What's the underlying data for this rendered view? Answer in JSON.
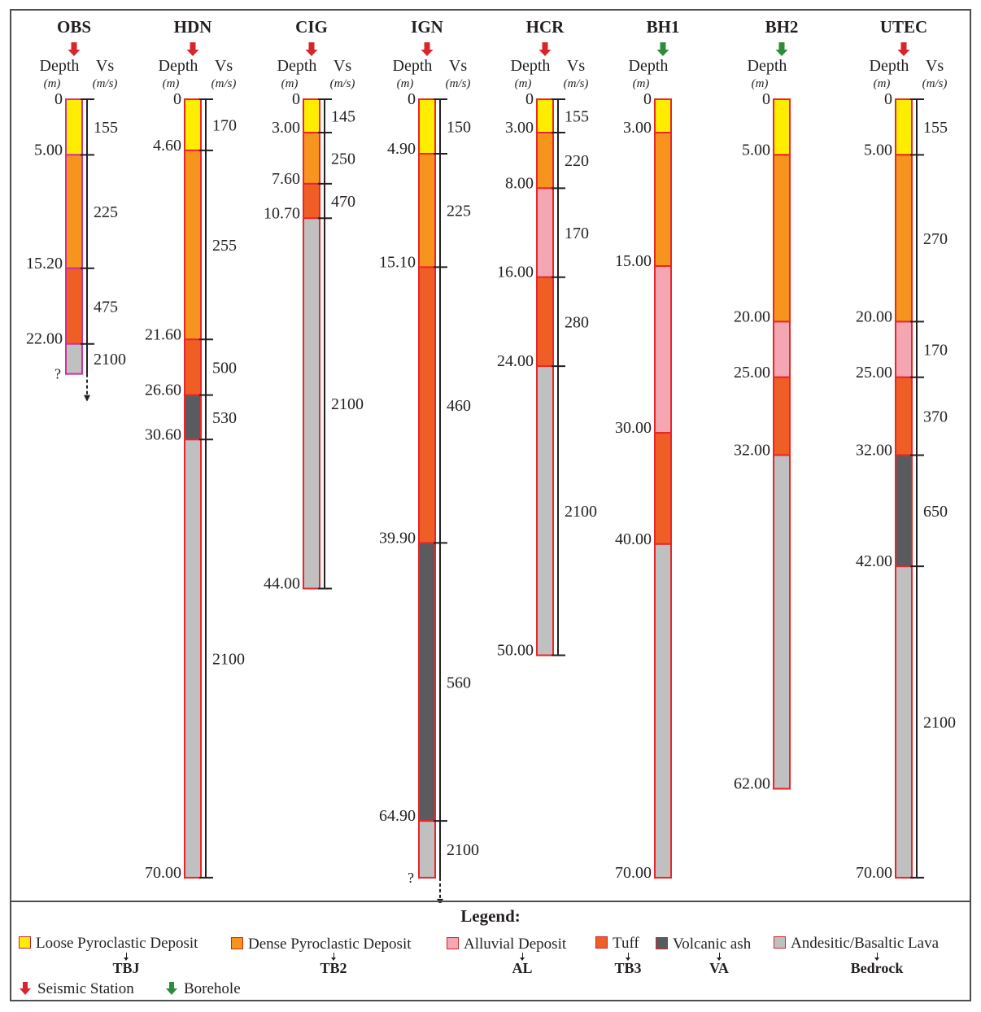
{
  "colors": {
    "TBJ": "#ffed00",
    "TB2": "#f7941d",
    "AL": "#f4a6b2",
    "TB3": "#ef5f25",
    "VA": "#5a5b5e",
    "Bedrock": "#c0c0c0",
    "outline": "#e8262a",
    "seismic": "#d7262b",
    "borehole": "#2e8b3d"
  },
  "headers": {
    "depth": "Depth",
    "vs": "Vs",
    "depth_unit": "(m)",
    "vs_unit": "(m/s)"
  },
  "columns": [
    {
      "id": "OBS",
      "type": "seismic",
      "has_vs": true,
      "unknown_base": true,
      "question": "?",
      "outline": "#cc3399",
      "depths": [
        "0",
        "5.00",
        "15.20",
        "22.00"
      ],
      "layers": [
        {
          "top": 0,
          "bottom": 5,
          "unit": "TBJ",
          "vs": "155"
        },
        {
          "top": 5,
          "bottom": 15.2,
          "unit": "TB2",
          "vs": "225"
        },
        {
          "top": 15.2,
          "bottom": 22,
          "unit": "TB3",
          "vs": "475"
        },
        {
          "top": 22,
          "bottom": 24.7,
          "unit": "Bedrock",
          "vs": "2100"
        }
      ]
    },
    {
      "id": "HDN",
      "type": "seismic",
      "has_vs": true,
      "unknown_base": false,
      "depths": [
        "0",
        "4.60",
        "21.60",
        "26.60",
        "30.60",
        "70.00"
      ],
      "layers": [
        {
          "top": 0,
          "bottom": 4.6,
          "unit": "TBJ",
          "vs": "170"
        },
        {
          "top": 4.6,
          "bottom": 21.6,
          "unit": "TB2",
          "vs": "255"
        },
        {
          "top": 21.6,
          "bottom": 26.6,
          "unit": "TB3",
          "vs": "500"
        },
        {
          "top": 26.6,
          "bottom": 30.6,
          "unit": "VA",
          "vs": "530"
        },
        {
          "top": 30.6,
          "bottom": 70,
          "unit": "Bedrock",
          "vs": "2100"
        }
      ]
    },
    {
      "id": "CIG",
      "type": "seismic",
      "has_vs": true,
      "unknown_base": false,
      "depths": [
        "0",
        "3.00",
        "7.60",
        "10.70",
        "44.00"
      ],
      "layers": [
        {
          "top": 0,
          "bottom": 3,
          "unit": "TBJ",
          "vs": "145"
        },
        {
          "top": 3,
          "bottom": 7.6,
          "unit": "TB2",
          "vs": "250"
        },
        {
          "top": 7.6,
          "bottom": 10.7,
          "unit": "TB3",
          "vs": "470"
        },
        {
          "top": 10.7,
          "bottom": 44,
          "unit": "Bedrock",
          "vs": "2100"
        }
      ]
    },
    {
      "id": "IGN",
      "type": "seismic",
      "has_vs": true,
      "unknown_base": true,
      "question": "?",
      "depths": [
        "0",
        "4.90",
        "15.10",
        "39.90",
        "64.90"
      ],
      "layers": [
        {
          "top": 0,
          "bottom": 4.9,
          "unit": "TBJ",
          "vs": "150"
        },
        {
          "top": 4.9,
          "bottom": 15.1,
          "unit": "TB2",
          "vs": "225"
        },
        {
          "top": 15.1,
          "bottom": 39.9,
          "unit": "TB3",
          "vs": "460"
        },
        {
          "top": 39.9,
          "bottom": 64.9,
          "unit": "VA",
          "vs": "560"
        },
        {
          "top": 64.9,
          "bottom": 70,
          "unit": "Bedrock",
          "vs": "2100"
        }
      ]
    },
    {
      "id": "HCR",
      "type": "seismic",
      "has_vs": true,
      "unknown_base": false,
      "depths": [
        "0",
        "3.00",
        "8.00",
        "16.00",
        "24.00",
        "50.00"
      ],
      "layers": [
        {
          "top": 0,
          "bottom": 3,
          "unit": "TBJ",
          "vs": "155"
        },
        {
          "top": 3,
          "bottom": 8,
          "unit": "TB2",
          "vs": "220"
        },
        {
          "top": 8,
          "bottom": 16,
          "unit": "AL",
          "vs": "170"
        },
        {
          "top": 16,
          "bottom": 24,
          "unit": "TB3",
          "vs": "280"
        },
        {
          "top": 24,
          "bottom": 50,
          "unit": "Bedrock",
          "vs": "2100"
        }
      ]
    },
    {
      "id": "BH1",
      "type": "borehole",
      "has_vs": false,
      "unknown_base": false,
      "depths": [
        "0",
        "3.00",
        "15.00",
        "30.00",
        "40.00",
        "70.00"
      ],
      "layers": [
        {
          "top": 0,
          "bottom": 3,
          "unit": "TBJ"
        },
        {
          "top": 3,
          "bottom": 15,
          "unit": "TB2"
        },
        {
          "top": 15,
          "bottom": 30,
          "unit": "AL"
        },
        {
          "top": 30,
          "bottom": 40,
          "unit": "TB3"
        },
        {
          "top": 40,
          "bottom": 70,
          "unit": "Bedrock"
        }
      ]
    },
    {
      "id": "BH2",
      "type": "borehole",
      "has_vs": false,
      "unknown_base": false,
      "depths": [
        "0",
        "5.00",
        "20.00",
        "25.00",
        "32.00",
        "62.00"
      ],
      "layers": [
        {
          "top": 0,
          "bottom": 5,
          "unit": "TBJ"
        },
        {
          "top": 5,
          "bottom": 20,
          "unit": "TB2"
        },
        {
          "top": 20,
          "bottom": 25,
          "unit": "AL"
        },
        {
          "top": 25,
          "bottom": 32,
          "unit": "TB3"
        },
        {
          "top": 32,
          "bottom": 62,
          "unit": "Bedrock"
        }
      ]
    },
    {
      "id": "UTEC",
      "type": "seismic",
      "has_vs": true,
      "unknown_base": false,
      "depths": [
        "0",
        "5.00",
        "20.00",
        "25.00",
        "32.00",
        "42.00",
        "70.00"
      ],
      "layers": [
        {
          "top": 0,
          "bottom": 5,
          "unit": "TBJ",
          "vs": "155"
        },
        {
          "top": 5,
          "bottom": 20,
          "unit": "TB2",
          "vs": "270"
        },
        {
          "top": 20,
          "bottom": 25,
          "unit": "AL",
          "vs": "170"
        },
        {
          "top": 25,
          "bottom": 32,
          "unit": "TB3",
          "vs": "370"
        },
        {
          "top": 32,
          "bottom": 42,
          "unit": "VA",
          "vs": "650"
        },
        {
          "top": 42,
          "bottom": 70,
          "unit": "Bedrock",
          "vs": "2100"
        }
      ]
    }
  ],
  "legend": {
    "title": "Legend:",
    "units": [
      {
        "key": "TBJ",
        "label": "Loose Pyroclastic Deposit",
        "code": "TBJ"
      },
      {
        "key": "TB2",
        "label": "Dense Pyroclastic Deposit",
        "code": "TB2"
      },
      {
        "key": "AL",
        "label": "Alluvial Deposit",
        "code": "AL"
      },
      {
        "key": "TB3",
        "label": "Tuff",
        "code": "TB3"
      },
      {
        "key": "VA",
        "label": "Volcanic ash",
        "code": "VA"
      },
      {
        "key": "Bedrock",
        "label": "Andesitic/Basaltic Lava",
        "code": "Bedrock"
      }
    ],
    "seismic_label": "Seismic Station",
    "borehole_label": "Borehole"
  }
}
